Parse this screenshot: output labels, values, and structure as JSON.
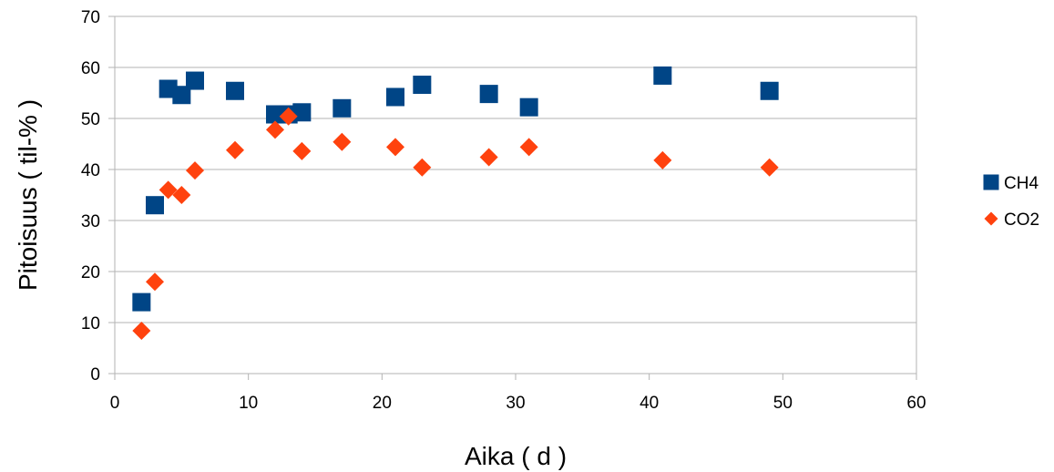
{
  "chart_data": {
    "type": "scatter",
    "title": "",
    "xlabel": "Aika ( d )",
    "ylabel": "Pitoisuus ( til-% )",
    "xlim": [
      0,
      60
    ],
    "ylim": [
      0,
      70
    ],
    "xticks": [
      "0",
      "10",
      "20",
      "30",
      "40",
      "50",
      "60"
    ],
    "yticks": [
      "0",
      "10",
      "20",
      "30",
      "40",
      "50",
      "60",
      "70"
    ],
    "grid": "horizontal",
    "legend_position": "right",
    "series": [
      {
        "name": "CH4",
        "marker": "square",
        "color": "#004586",
        "x": [
          2,
          3,
          4,
          5,
          6,
          9,
          12,
          13,
          14,
          17,
          21,
          23,
          28,
          31,
          41,
          49
        ],
        "y": [
          14,
          33,
          55.8,
          54.6,
          57.4,
          55.4,
          50.8,
          50.8,
          51.2,
          52.0,
          54.2,
          56.6,
          54.8,
          52.2,
          58.4,
          55.4
        ]
      },
      {
        "name": "CO2",
        "marker": "diamond",
        "color": "#ff420e",
        "x": [
          2,
          3,
          4,
          5,
          6,
          9,
          12,
          13,
          14,
          17,
          21,
          23,
          28,
          31,
          41,
          49
        ],
        "y": [
          8.4,
          18,
          36,
          35,
          39.8,
          43.8,
          47.8,
          50.4,
          43.6,
          45.4,
          44.4,
          40.4,
          42.4,
          44.4,
          41.8,
          40.4
        ]
      }
    ]
  }
}
